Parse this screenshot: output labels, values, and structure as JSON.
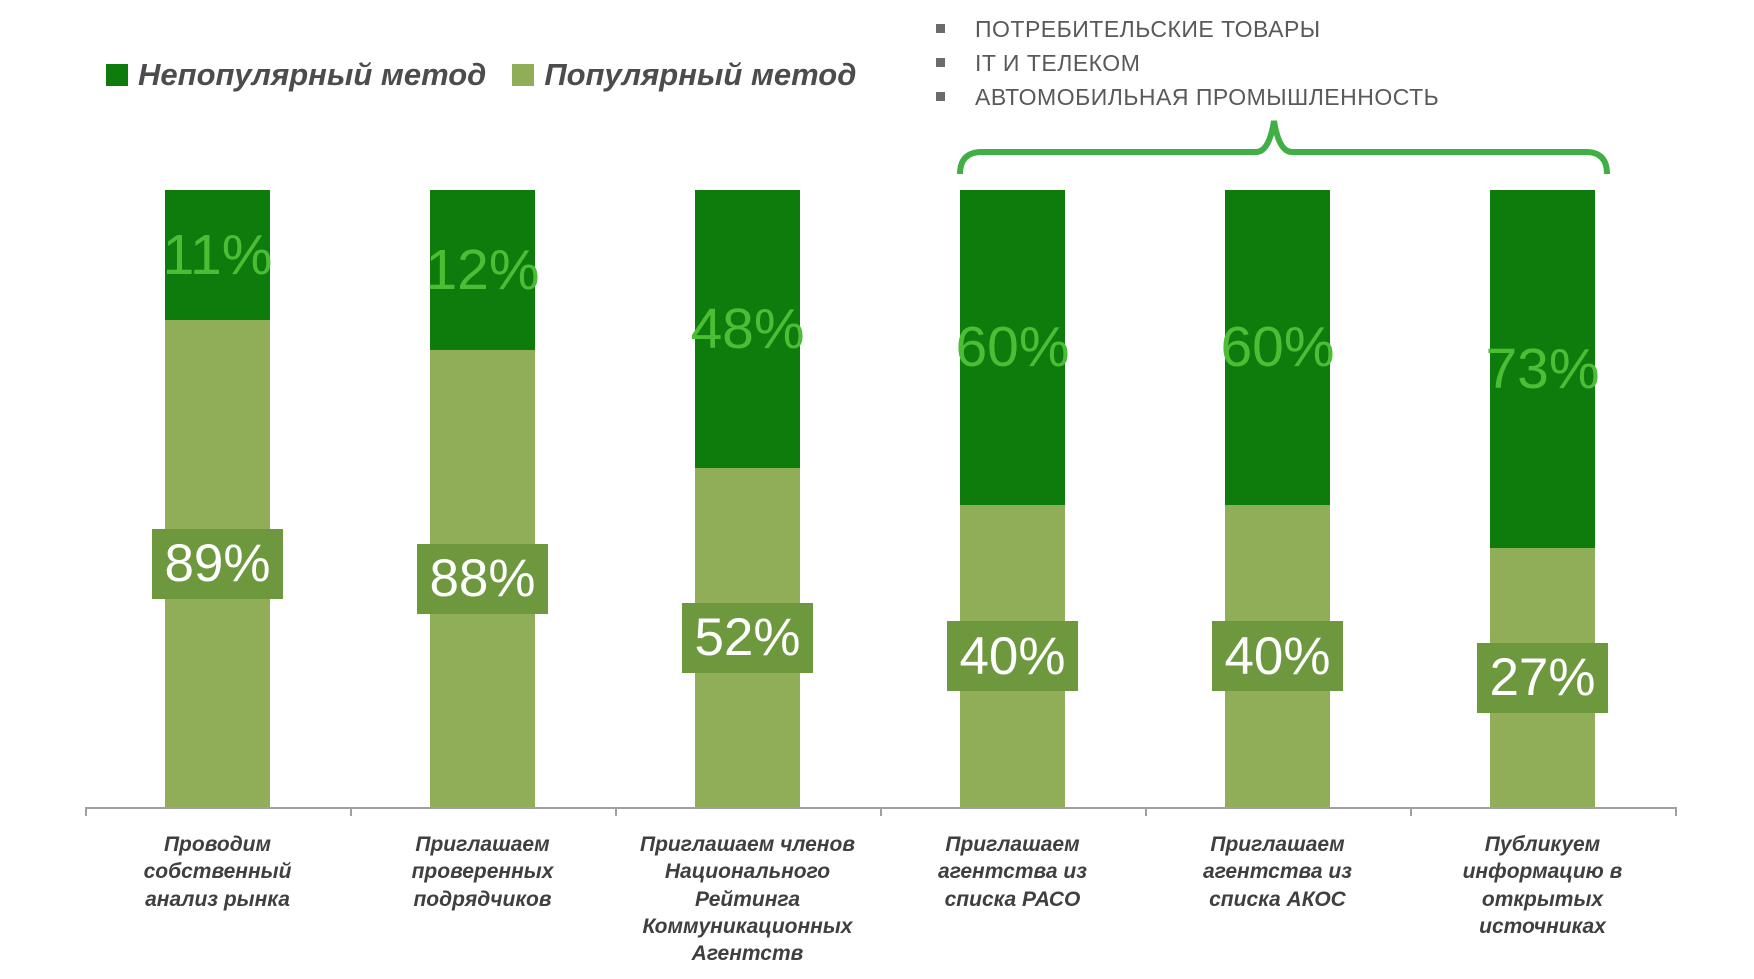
{
  "legend": {
    "items": [
      {
        "label": "Непопулярный метод",
        "color": "#0e7c0c"
      },
      {
        "label": "Популярный метод",
        "color": "#8fae57"
      }
    ]
  },
  "annotation": {
    "items": [
      "ПОТРЕБИТЕЛЬСКИЕ ТОВАРЫ",
      "IT И ТЕЛЕКОМ",
      "АВТОМОБИЛЬНАЯ ПРОМЫШЛЕННОСТЬ"
    ],
    "bracket_color": "#3faf46"
  },
  "chart_data": {
    "type": "bar",
    "stacked": true,
    "orientation": "vertical",
    "title": "",
    "xlabel": "",
    "ylabel": "",
    "gridlines": false,
    "legend_position": "top-left",
    "categories": [
      "Проводим\nсобственный\nанализ рынка",
      "Приглашаем\nпроверенных\nподрядчиков",
      "Приглашаем членов\nНационального\nРейтинга\nКоммуникационных\nАгентств",
      "Приглашаем\nагентства из\nсписка РАСО",
      "Приглашаем\nагентства из\nсписка АКОС",
      "Публикуем\nинформацию в\nоткрытых\nисточниках"
    ],
    "series": [
      {
        "name": "Непопулярный метод",
        "position": "top",
        "color": "#0e7c0c",
        "label_color": "#4cbe36",
        "values": [
          11,
          12,
          48,
          60,
          60,
          73
        ],
        "labels": [
          "11%",
          "12%",
          "48%",
          "60%",
          "60%",
          "73%"
        ]
      },
      {
        "name": "Популярный метод",
        "position": "bottom",
        "color": "#8fae57",
        "label_box_color": "#6d983d",
        "label_color": "#ffffff",
        "values": [
          89,
          88,
          52,
          40,
          40,
          27
        ],
        "labels": [
          "89%",
          "88%",
          "52%",
          "40%",
          "40%",
          "27%"
        ]
      }
    ],
    "axis": {
      "baseline_color": "#a0a0a0"
    },
    "layout_hints": {
      "top_segment_visual_fractions": [
        0.21,
        0.26,
        0.45,
        0.51,
        0.51,
        0.58
      ],
      "bracket_spans_categories": [
        3,
        4,
        5
      ]
    }
  }
}
